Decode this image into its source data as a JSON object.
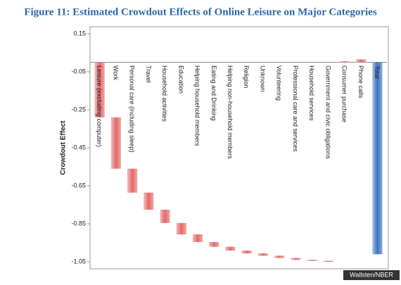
{
  "chart_data": {
    "type": "waterfall",
    "title": "Figure 11: Estimated Crowdout Effects of Online Leisure on Major Categories",
    "y_label": "Crowdout Effect",
    "source": "Wallsten/NBER",
    "categories": [
      "Leisure (excluding computer)",
      "Work",
      "Personal care (including sleep)",
      "Travel",
      "Household activities",
      "Education",
      "Helping household members",
      "Eating and Drinking",
      "Helping non-household members",
      "Religion",
      "Unknown",
      "Volunteering",
      "Professional care and services",
      "Household services",
      "Government and civic obligations",
      "Consumer purchase",
      "Phone calls",
      "Total"
    ],
    "values": [
      -0.29,
      -0.27,
      -0.126,
      -0.09,
      -0.07,
      -0.06,
      -0.04,
      -0.025,
      -0.02,
      -0.015,
      -0.012,
      -0.012,
      -0.01,
      -0.005,
      -0.005,
      0.005,
      0.015,
      -1.01
    ],
    "color": "#e46a6a",
    "total_color": "#3a73c0",
    "ylim": [
      -1.05,
      0.15
    ],
    "yticks": [
      0.15,
      -0.05,
      -0.25,
      -0.45,
      -0.65,
      -0.85,
      -1.05
    ]
  }
}
